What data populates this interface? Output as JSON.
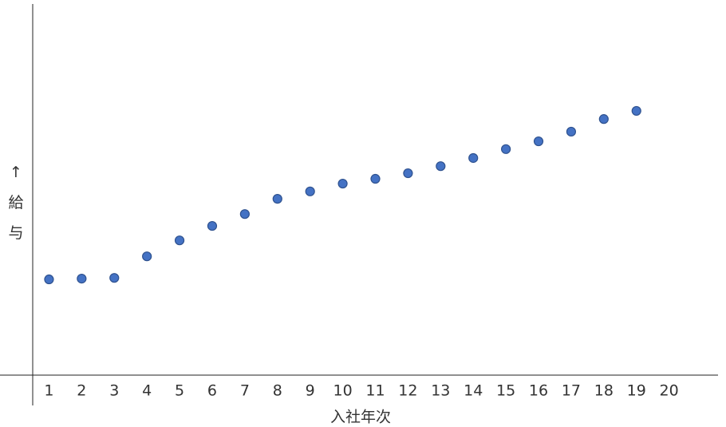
{
  "chart_data": {
    "type": "scatter",
    "x_label": "入社年次",
    "y_label": "↑給与",
    "x": [
      1,
      2,
      3,
      4,
      5,
      6,
      7,
      8,
      9,
      10,
      11,
      12,
      13,
      14,
      15,
      16,
      17,
      18,
      19
    ],
    "values": [
      25.8,
      26.0,
      26.2,
      32.0,
      36.3,
      40.2,
      43.4,
      47.5,
      49.5,
      51.6,
      52.9,
      54.4,
      56.3,
      58.5,
      60.9,
      63.0,
      65.6,
      69.0,
      71.2
    ],
    "color": "#4472c4",
    "xlim": [
      0.5,
      21.5
    ],
    "xticks": [
      1,
      2,
      3,
      4,
      5,
      6,
      7,
      8,
      9,
      10,
      11,
      12,
      13,
      14,
      15,
      16,
      17,
      18,
      19,
      20
    ],
    "ylim": [
      0,
      100
    ]
  }
}
